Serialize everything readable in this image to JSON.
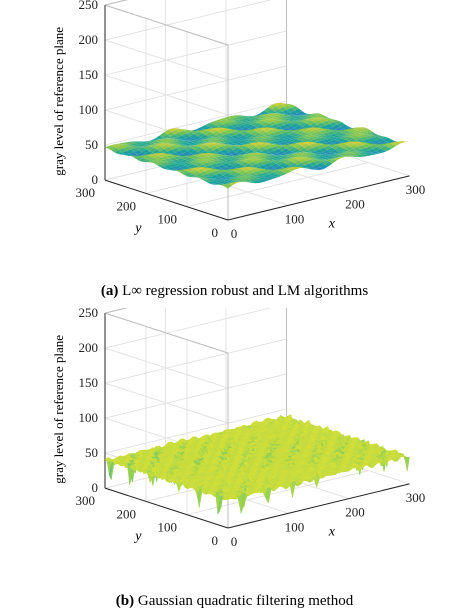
{
  "chart_data": [
    {
      "id": "a",
      "type": "surface",
      "caption_letter": "(a)",
      "caption_text": "L∞ regression robust and LM algorithms",
      "zlabel": "gray level of  reference plane",
      "xlabel": "x",
      "ylabel": "y",
      "xlim": [
        0,
        300
      ],
      "ylim": [
        0,
        300
      ],
      "zlim": [
        0,
        250
      ],
      "xticks": [
        "0",
        "100",
        "200",
        "300"
      ],
      "yticks": [
        "0",
        "100",
        "200",
        "300"
      ],
      "zticks": [
        "0",
        "50",
        "100",
        "150",
        "200",
        "250"
      ],
      "grid": true,
      "surface": {
        "shape": "smooth periodic ripples",
        "base_level": 45,
        "amplitude": 4,
        "colormap": [
          "#2b7fc1",
          "#18a39b",
          "#7cc650",
          "#e7cf2e"
        ]
      }
    },
    {
      "id": "b",
      "type": "surface",
      "caption_letter": "(b)",
      "caption_text": "Gaussian quadratic filtering method",
      "zlabel": "gray level of  reference plane",
      "xlabel": "x",
      "ylabel": "y",
      "xlim": [
        0,
        300
      ],
      "ylim": [
        0,
        300
      ],
      "zlim": [
        0,
        250
      ],
      "xticks": [
        "0",
        "100",
        "200",
        "300"
      ],
      "yticks": [
        "0",
        "100",
        "200",
        "300"
      ],
      "zticks": [
        "0",
        "50",
        "100",
        "150",
        "200",
        "250"
      ],
      "grid": true,
      "surface": {
        "shape": "rough surface with downward spikes",
        "base_level": 40,
        "min_level": 5,
        "colormap": [
          "#3b59c7",
          "#22a4b5",
          "#8fd055",
          "#f5e62a"
        ]
      }
    }
  ]
}
